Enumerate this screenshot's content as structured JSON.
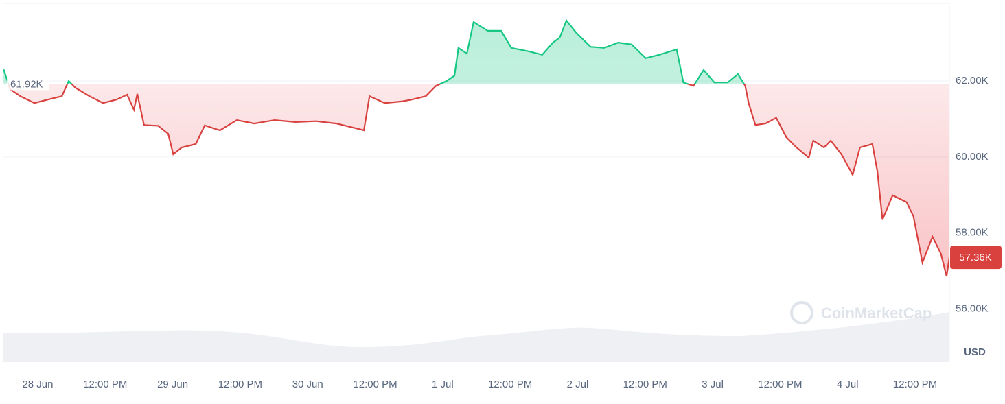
{
  "chart_data": {
    "type": "line",
    "x": [
      -6.1,
      -4.9,
      -3.1,
      -0.6,
      1.8,
      4.3,
      5.5,
      6.7,
      9.2,
      11.6,
      14.0,
      15.9,
      17.1,
      17.7,
      18.9,
      21.4,
      23.2,
      24.1,
      25.6,
      28.1,
      29.7,
      32.4,
      35.4,
      38.5,
      42.1,
      45.8,
      49.5,
      53.1,
      55.6,
      58.0,
      59.0,
      61.7,
      64.7,
      66.5,
      69.0,
      70.8,
      72.7,
      74.1,
      74.8,
      76.3,
      77.5,
      80.0,
      82.4,
      84.2,
      87.3,
      89.7,
      91.6,
      92.8,
      94.0,
      95.8,
      98.3,
      100.7,
      103.2,
      105.6,
      108.1,
      110.5,
      113.6,
      114.8,
      116.6,
      118.4,
      120.3,
      122.7,
      124.5,
      125.8,
      126.4,
      127.6,
      129.4,
      131.3,
      133.1,
      134.9,
      137.1,
      137.9,
      139.8,
      141.0,
      142.9,
      144.9,
      146.2,
      148.4,
      149.3,
      150.2,
      152.0,
      154.5,
      155.7,
      157.3,
      159.1,
      160.6,
      161.6,
      162.1
    ],
    "values": [
      62.32,
      61.78,
      61.6,
      61.42,
      61.51,
      61.6,
      62.0,
      61.82,
      61.6,
      61.42,
      61.51,
      61.64,
      61.24,
      61.66,
      60.84,
      60.82,
      60.61,
      60.07,
      60.25,
      60.34,
      60.83,
      60.7,
      60.97,
      60.88,
      60.97,
      60.92,
      60.94,
      60.88,
      60.79,
      60.7,
      61.6,
      61.42,
      61.46,
      61.51,
      61.6,
      61.87,
      62.0,
      62.14,
      62.87,
      62.72,
      63.55,
      63.32,
      63.32,
      62.87,
      62.78,
      62.69,
      63.01,
      63.14,
      63.59,
      63.26,
      62.9,
      62.87,
      63.01,
      62.96,
      62.6,
      62.69,
      62.83,
      61.96,
      61.87,
      62.29,
      61.96,
      61.96,
      62.18,
      61.87,
      61.42,
      60.84,
      60.88,
      61.03,
      60.52,
      60.25,
      59.98,
      60.43,
      60.25,
      60.43,
      60.07,
      59.53,
      60.25,
      60.34,
      59.62,
      58.35,
      58.99,
      58.81,
      58.44,
      57.22,
      57.9,
      57.45,
      56.86,
      57.36
    ],
    "color_up": "#16c784",
    "color_down": "#d9413f",
    "xlim": [
      -6.1,
      162.1
    ],
    "ylim": [
      54.6,
      64.04
    ],
    "xticks": [
      {
        "value": 0,
        "label": "28 Jun"
      },
      {
        "value": 12,
        "label": "12:00 PM"
      },
      {
        "value": 24,
        "label": "29 Jun"
      },
      {
        "value": 36,
        "label": "12:00 PM"
      },
      {
        "value": 48,
        "label": "30 Jun"
      },
      {
        "value": 60,
        "label": "12:00 PM"
      },
      {
        "value": 72,
        "label": "1 Jul"
      },
      {
        "value": 84,
        "label": "12:00 PM"
      },
      {
        "value": 96,
        "label": "2 Jul"
      },
      {
        "value": 108,
        "label": "12:00 PM"
      },
      {
        "value": 120,
        "label": "3 Jul"
      },
      {
        "value": 132,
        "label": "12:00 PM"
      },
      {
        "value": 144,
        "label": "4 Jul"
      },
      {
        "value": 156,
        "label": "12:00 PM"
      }
    ],
    "yticks": [
      {
        "value": 56,
        "label": "56.00K"
      },
      {
        "value": 58,
        "label": "58.00K"
      },
      {
        "value": 60,
        "label": "60.00K"
      },
      {
        "value": 62,
        "label": "62.00K"
      }
    ],
    "grid": true,
    "baseline": {
      "value": 61.92,
      "label": "61.92K"
    },
    "last_price": {
      "value": 57.36,
      "label": "57.36K"
    },
    "y_unit": "USD",
    "watermark": "CoinMarketCap"
  }
}
